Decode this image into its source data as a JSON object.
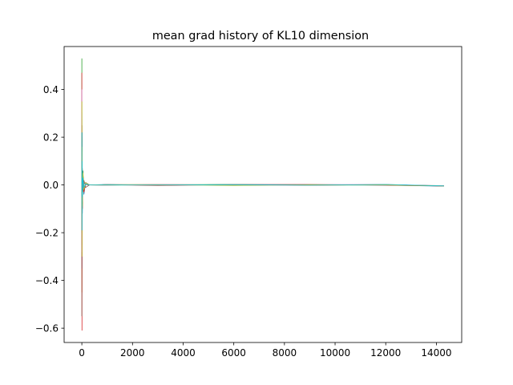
{
  "chart_data": {
    "type": "line",
    "title": "mean grad history of KL10 dimension",
    "xlabel": "",
    "ylabel": "",
    "xlim": [
      -700,
      15000
    ],
    "ylim": [
      -0.66,
      0.58
    ],
    "xticks": [
      0,
      2000,
      4000,
      6000,
      8000,
      10000,
      12000,
      14000
    ],
    "xtick_labels": [
      "0",
      "2000",
      "4000",
      "6000",
      "8000",
      "10000",
      "12000",
      "14000"
    ],
    "yticks": [
      -0.6,
      -0.4,
      -0.2,
      0.0,
      0.2,
      0.4
    ],
    "ytick_labels": [
      "−0.6",
      "−0.4",
      "−0.2",
      "0.0",
      "0.2",
      "0.4"
    ],
    "grid": false,
    "legend": "none",
    "series": [
      {
        "color": "#1f77b4",
        "x": [
          0,
          5,
          10,
          20,
          40,
          80,
          150,
          300,
          1000,
          3000,
          6000,
          9000,
          12000,
          14300
        ],
        "y": [
          0.05,
          -0.25,
          0.18,
          -0.12,
          0.06,
          -0.04,
          0.01,
          0.0,
          0.002,
          -0.001,
          0.002,
          0.001,
          -0.001,
          -0.005
        ]
      },
      {
        "color": "#ff7f0e",
        "x": [
          0,
          5,
          10,
          20,
          40,
          80,
          150,
          300,
          1000,
          3000,
          6000,
          9000,
          12000,
          14300
        ],
        "y": [
          0.12,
          -0.45,
          0.2,
          -0.1,
          0.05,
          -0.03,
          0.01,
          0.0,
          0.001,
          0.002,
          -0.001,
          0.0,
          0.001,
          -0.004
        ]
      },
      {
        "color": "#2ca02c",
        "x": [
          0,
          5,
          10,
          20,
          40,
          80,
          150,
          300,
          1000,
          3000,
          6000,
          9000,
          12000,
          14300
        ],
        "y": [
          0.53,
          -0.15,
          0.22,
          -0.08,
          0.06,
          -0.02,
          0.01,
          0.0,
          -0.001,
          0.001,
          0.002,
          -0.001,
          0.0,
          -0.003
        ]
      },
      {
        "color": "#d62728",
        "x": [
          0,
          5,
          10,
          20,
          40,
          80,
          150,
          300,
          1000,
          3000,
          6000,
          9000,
          12000,
          14300
        ],
        "y": [
          0.47,
          -0.61,
          0.15,
          -0.1,
          0.04,
          -0.03,
          0.01,
          0.0,
          0.001,
          -0.002,
          0.001,
          0.002,
          -0.001,
          -0.004
        ]
      },
      {
        "color": "#9467bd",
        "x": [
          0,
          5,
          10,
          20,
          40,
          80,
          150,
          300,
          1000,
          3000,
          6000,
          9000,
          12000,
          14300
        ],
        "y": [
          0.3,
          -0.35,
          0.12,
          -0.06,
          0.03,
          -0.02,
          0.01,
          0.0,
          0.0,
          0.001,
          -0.001,
          0.001,
          0.002,
          -0.005
        ]
      },
      {
        "color": "#8c564b",
        "x": [
          0,
          5,
          10,
          20,
          40,
          80,
          150,
          300,
          1000,
          3000,
          6000,
          9000,
          12000,
          14300
        ],
        "y": [
          -0.55,
          0.25,
          -0.12,
          0.07,
          -0.03,
          0.02,
          -0.01,
          0.0,
          0.001,
          0.0,
          0.001,
          -0.001,
          0.001,
          -0.004
        ]
      },
      {
        "color": "#e377c2",
        "x": [
          0,
          5,
          10,
          20,
          40,
          80,
          150,
          300,
          1000,
          3000,
          6000,
          9000,
          12000,
          14300
        ],
        "y": [
          0.4,
          -0.28,
          0.14,
          -0.07,
          0.04,
          -0.02,
          0.01,
          0.0,
          -0.001,
          0.002,
          0.0,
          -0.001,
          0.001,
          -0.003
        ]
      },
      {
        "color": "#7f7f7f",
        "x": [
          0,
          5,
          10,
          20,
          40,
          80,
          150,
          300,
          1000,
          3000,
          6000,
          9000,
          12000,
          14300
        ],
        "y": [
          -0.2,
          0.18,
          -0.1,
          0.05,
          -0.02,
          0.01,
          0.0,
          0.0,
          0.001,
          -0.001,
          0.001,
          0.0,
          0.001,
          -0.004
        ]
      },
      {
        "color": "#bcbd22",
        "x": [
          0,
          5,
          10,
          20,
          40,
          80,
          150,
          300,
          1000,
          3000,
          6000,
          9000,
          12000,
          14300
        ],
        "y": [
          0.35,
          -0.3,
          0.16,
          -0.09,
          0.05,
          -0.02,
          0.01,
          0.0,
          0.0,
          0.001,
          -0.002,
          0.001,
          0.0,
          -0.004
        ]
      },
      {
        "color": "#17becf",
        "x": [
          0,
          5,
          10,
          20,
          40,
          80,
          150,
          300,
          1000,
          3000,
          6000,
          9000,
          12000,
          14300
        ],
        "y": [
          0.22,
          -0.19,
          0.1,
          -0.05,
          0.03,
          -0.01,
          0.005,
          0.0,
          0.001,
          0.0,
          0.001,
          -0.001,
          0.002,
          -0.004
        ]
      }
    ]
  }
}
